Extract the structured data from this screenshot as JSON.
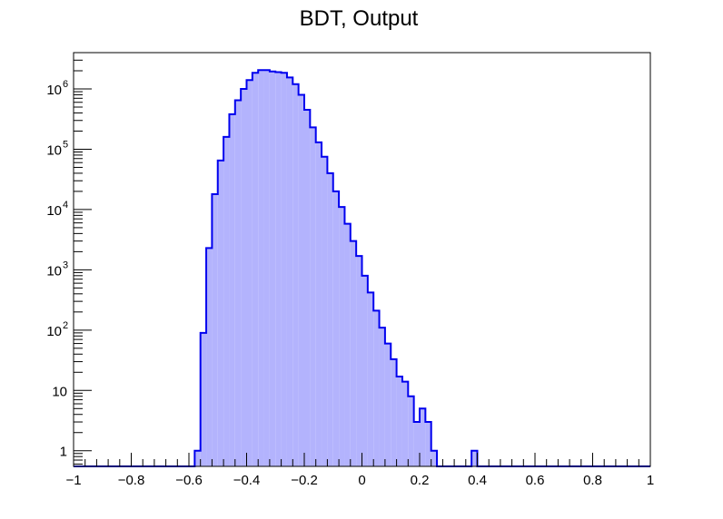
{
  "chart_data": {
    "type": "histogram",
    "title": "BDT, Output",
    "xlabel": "",
    "ylabel": "",
    "xlim": [
      -1,
      1
    ],
    "ylim": [
      0.55,
      4000000
    ],
    "y_scale": "log",
    "grid": false,
    "legend": "none",
    "bin_width": 0.02,
    "x_ticks": [
      -1,
      -0.8,
      -0.6,
      -0.4,
      -0.2,
      0,
      0.2,
      0.4,
      0.6,
      0.8,
      1
    ],
    "x_tick_labels": [
      "−1",
      "−0.8",
      "−0.6",
      "−0.4",
      "−0.2",
      "0",
      "0.2",
      "0.4",
      "0.6",
      "0.8",
      "1"
    ],
    "y_ticks": [
      {
        "value": 1,
        "label": "1"
      },
      {
        "value": 10,
        "label": "10"
      },
      {
        "value": 100,
        "label": "10",
        "exp": "2"
      },
      {
        "value": 1000,
        "label": "10",
        "exp": "3"
      },
      {
        "value": 10000,
        "label": "10",
        "exp": "4"
      },
      {
        "value": 100000,
        "label": "10",
        "exp": "5"
      },
      {
        "value": 1000000,
        "label": "10",
        "exp": "6"
      }
    ],
    "line_color": "#0000ee",
    "fill_color": "#b3b3fd",
    "bins": [
      {
        "x": -0.58,
        "y": 1
      },
      {
        "x": -0.56,
        "y": 90
      },
      {
        "x": -0.54,
        "y": 2300
      },
      {
        "x": -0.52,
        "y": 18000
      },
      {
        "x": -0.5,
        "y": 65000
      },
      {
        "x": -0.48,
        "y": 160000
      },
      {
        "x": -0.46,
        "y": 380000
      },
      {
        "x": -0.44,
        "y": 650000
      },
      {
        "x": -0.42,
        "y": 1000000
      },
      {
        "x": -0.4,
        "y": 1400000
      },
      {
        "x": -0.38,
        "y": 1850000
      },
      {
        "x": -0.36,
        "y": 2050000
      },
      {
        "x": -0.34,
        "y": 2050000
      },
      {
        "x": -0.32,
        "y": 1950000
      },
      {
        "x": -0.3,
        "y": 1900000
      },
      {
        "x": -0.28,
        "y": 1850000
      },
      {
        "x": -0.26,
        "y": 1550000
      },
      {
        "x": -0.24,
        "y": 1200000
      },
      {
        "x": -0.22,
        "y": 800000
      },
      {
        "x": -0.2,
        "y": 450000
      },
      {
        "x": -0.18,
        "y": 230000
      },
      {
        "x": -0.16,
        "y": 130000
      },
      {
        "x": -0.14,
        "y": 75000
      },
      {
        "x": -0.12,
        "y": 40000
      },
      {
        "x": -0.1,
        "y": 20000
      },
      {
        "x": -0.08,
        "y": 11000
      },
      {
        "x": -0.06,
        "y": 5800
      },
      {
        "x": -0.04,
        "y": 3000
      },
      {
        "x": -0.02,
        "y": 1700
      },
      {
        "x": 0.0,
        "y": 800
      },
      {
        "x": 0.02,
        "y": 420
      },
      {
        "x": 0.04,
        "y": 210
      },
      {
        "x": 0.06,
        "y": 110
      },
      {
        "x": 0.08,
        "y": 60
      },
      {
        "x": 0.1,
        "y": 33
      },
      {
        "x": 0.12,
        "y": 17
      },
      {
        "x": 0.14,
        "y": 14
      },
      {
        "x": 0.16,
        "y": 8
      },
      {
        "x": 0.18,
        "y": 3
      },
      {
        "x": 0.2,
        "y": 5
      },
      {
        "x": 0.22,
        "y": 3
      },
      {
        "x": 0.24,
        "y": 1
      },
      {
        "x": 0.38,
        "y": 1
      }
    ]
  }
}
